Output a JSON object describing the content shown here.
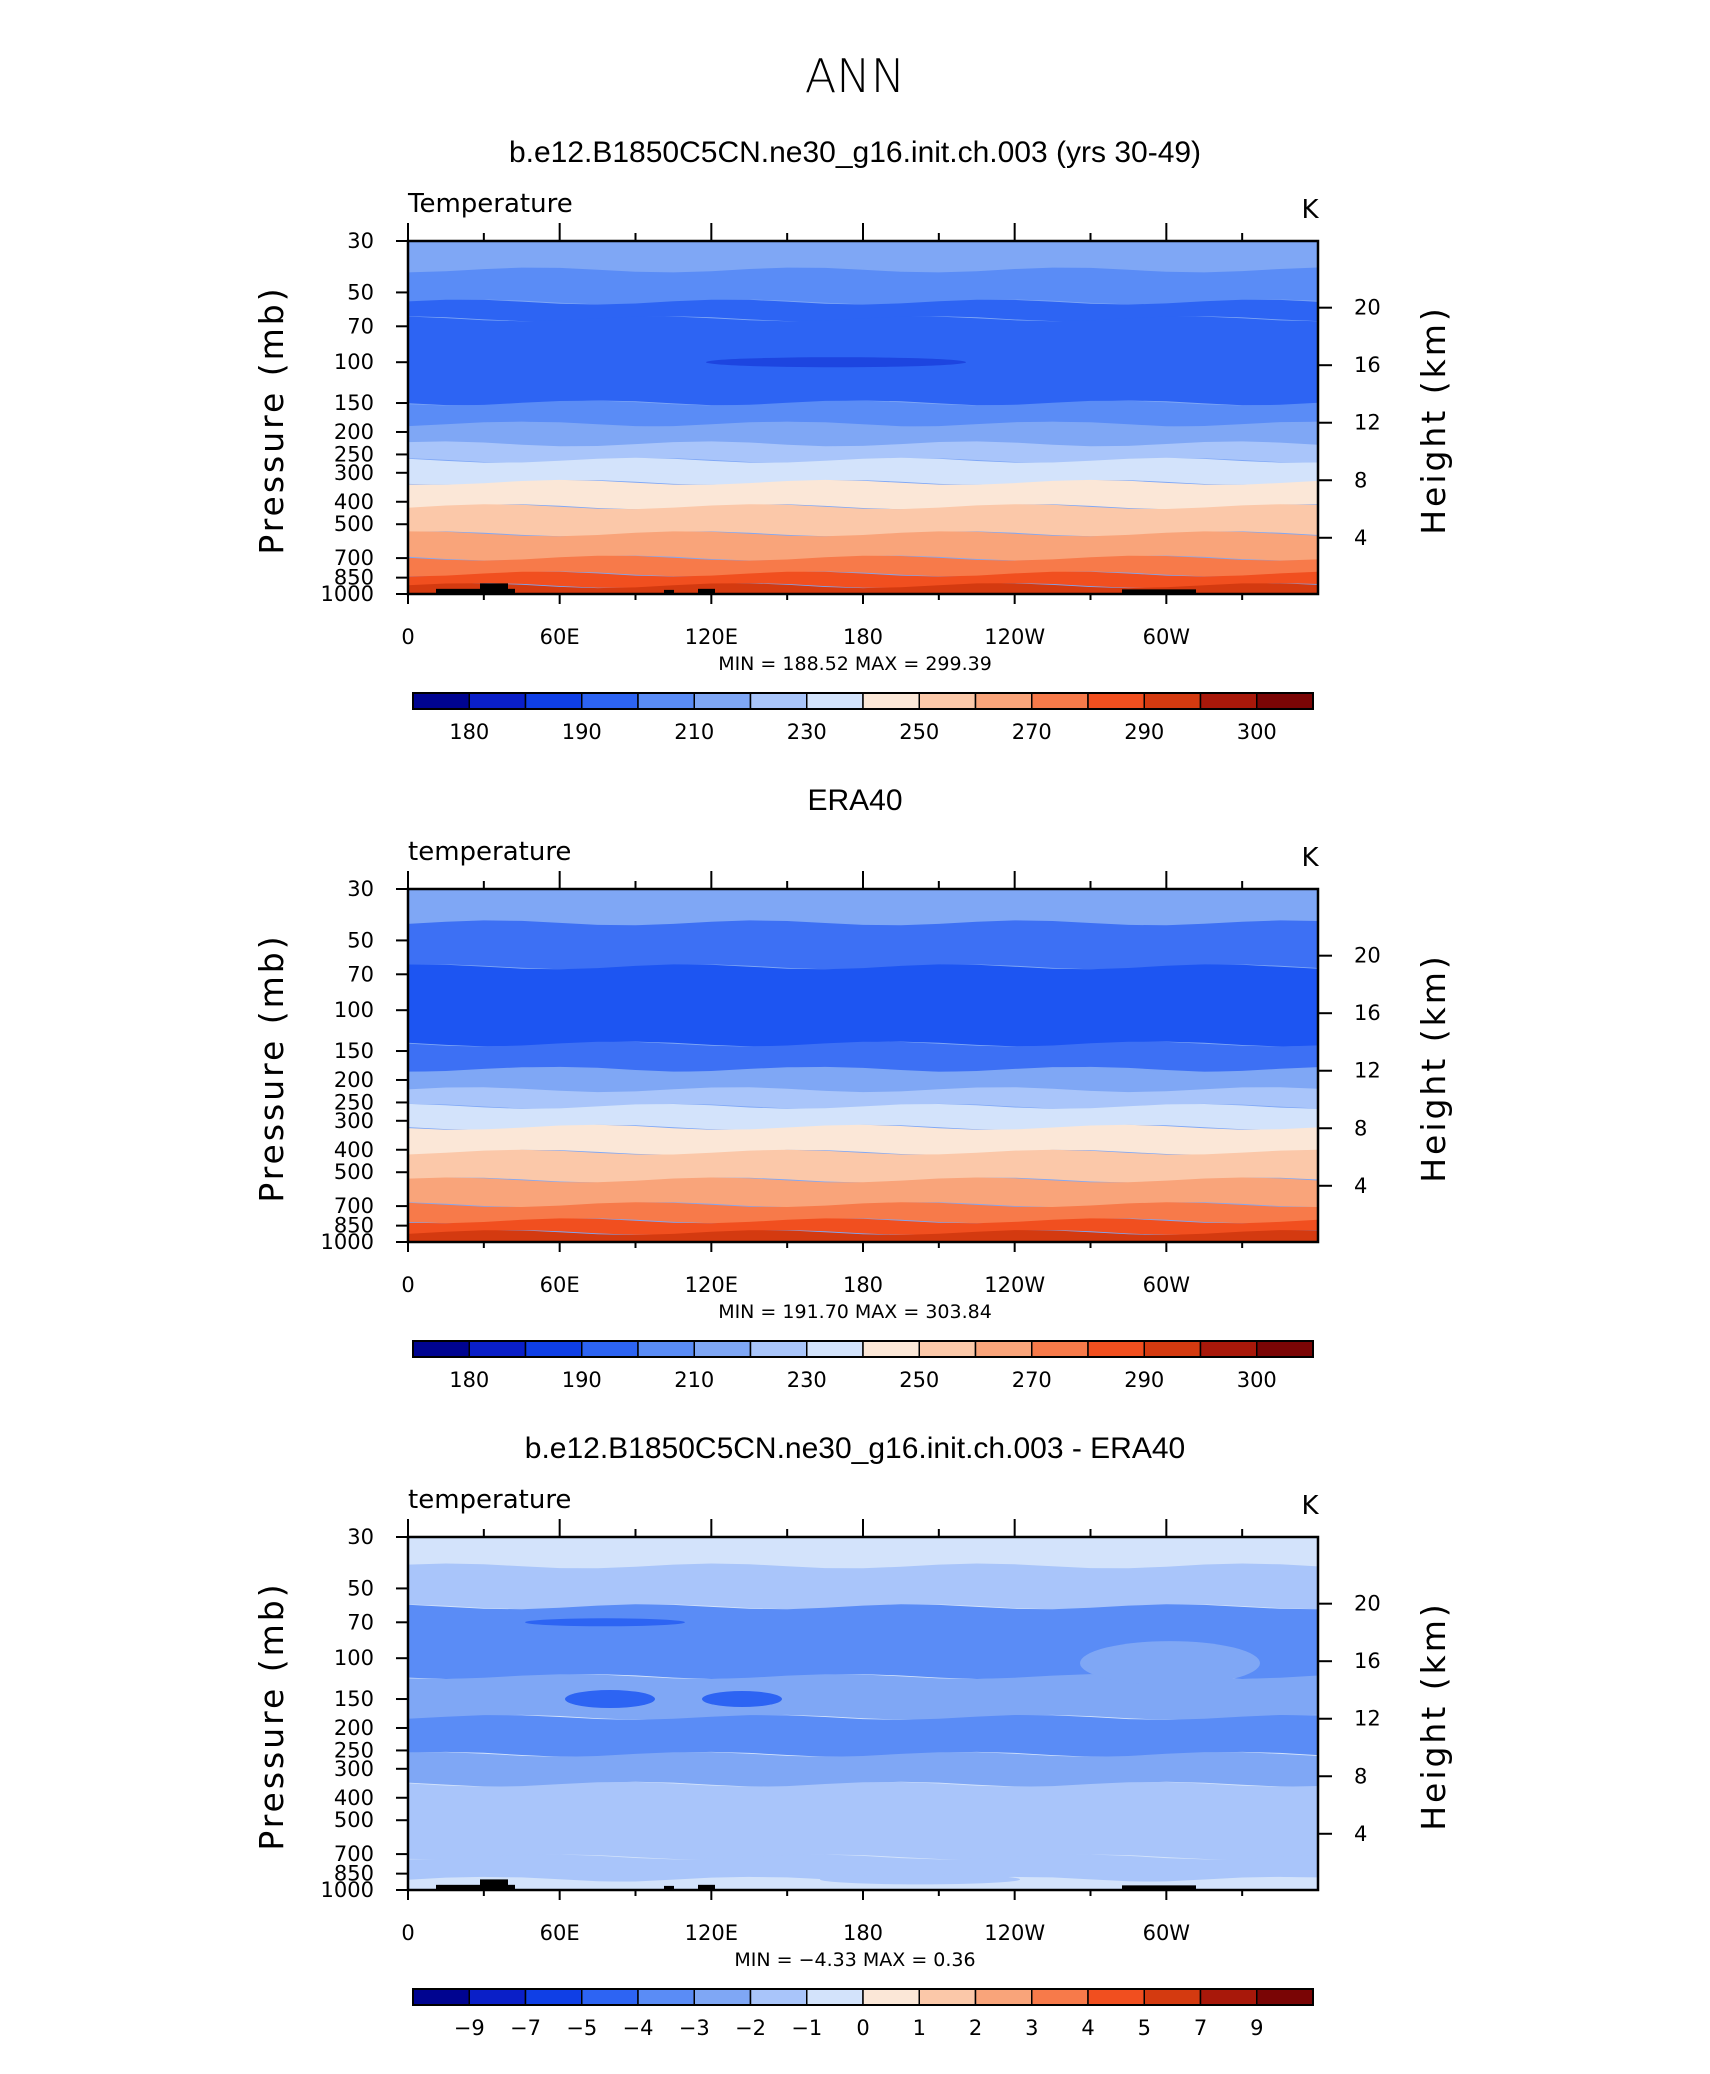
{
  "figure_title": "ANN",
  "chart_data": [
    {
      "type": "heatmap",
      "title": "b.e12.B1850C5CN.ne30_g16.init.ch.003 (yrs 30-49)",
      "variable_label": "Temperature",
      "units": "K",
      "ylabel": "Pressure (mb)",
      "y2label": "Height (km)",
      "x_ticks": [
        "0",
        "60E",
        "120E",
        "180",
        "120W",
        "60W"
      ],
      "y_ticks": [
        "30",
        "50",
        "70",
        "100",
        "150",
        "200",
        "250",
        "300",
        "400",
        "500",
        "700",
        "850",
        "1000"
      ],
      "y2_ticks": [
        "20",
        "16",
        "12",
        "8",
        "4"
      ],
      "min_max_text": "MIN =  188.52   MAX =  299.39",
      "min": 188.52,
      "max": 299.39,
      "colorbar_labels": [
        "180",
        "190",
        "210",
        "230",
        "250",
        "270",
        "290",
        "300"
      ],
      "band_levels_mb": [
        30,
        40,
        55,
        65,
        150,
        185,
        225,
        265,
        330,
        420,
        550,
        700,
        820,
        920,
        1000
      ],
      "band_colors": [
        "#7fa7f5",
        "#5a8cf6",
        "#2d64f3",
        "#2d64f3",
        "#5a8cf6",
        "#7fa7f5",
        "#a9c5fa",
        "#d3e3fb",
        "#fbe7d7",
        "#fbc8a9",
        "#f9a47a",
        "#f77a4a",
        "#f14f1f",
        "#d43a10"
      ],
      "terrain": true
    },
    {
      "type": "heatmap",
      "title": "ERA40",
      "variable_label": "temperature",
      "units": "K",
      "ylabel": "Pressure (mb)",
      "y2label": "Height (km)",
      "x_ticks": [
        "0",
        "60E",
        "120E",
        "180",
        "120W",
        "60W"
      ],
      "y_ticks": [
        "30",
        "50",
        "70",
        "100",
        "150",
        "200",
        "250",
        "300",
        "400",
        "500",
        "700",
        "850",
        "1000"
      ],
      "y2_ticks": [
        "20",
        "16",
        "12",
        "8",
        "4"
      ],
      "min_max_text": "MIN =  191.70   MAX =  303.84",
      "min": 191.7,
      "max": 303.84,
      "colorbar_labels": [
        "180",
        "190",
        "210",
        "230",
        "250",
        "270",
        "290",
        "300"
      ],
      "band_levels_mb": [
        30,
        42,
        65,
        140,
        180,
        220,
        260,
        320,
        410,
        540,
        690,
        810,
        910,
        1000
      ],
      "band_colors": [
        "#7fa7f5",
        "#3d70f4",
        "#1d55f2",
        "#3d70f4",
        "#7fa7f5",
        "#a9c5fa",
        "#d3e3fb",
        "#fbe7d7",
        "#fbc8a9",
        "#f9a47a",
        "#f77a4a",
        "#f14f1f",
        "#d43a10"
      ],
      "terrain": false
    },
    {
      "type": "heatmap",
      "title": "b.e12.B1850C5CN.ne30_g16.init.ch.003 - ERA40",
      "variable_label": "temperature",
      "units": "K",
      "ylabel": "Pressure (mb)",
      "y2label": "Height (km)",
      "x_ticks": [
        "0",
        "60E",
        "120E",
        "180",
        "120W",
        "60W"
      ],
      "y_ticks": [
        "30",
        "50",
        "70",
        "100",
        "150",
        "200",
        "250",
        "300",
        "400",
        "500",
        "700",
        "850",
        "1000"
      ],
      "y2_ticks": [
        "20",
        "16",
        "12",
        "8",
        "4"
      ],
      "min_max_text": "MIN =   −4.33   MAX =     0.36",
      "min": -4.33,
      "max": 0.36,
      "colorbar_labels": [
        "−9",
        "−7",
        "−5",
        "−4",
        "−3",
        "−2",
        "−1",
        "0",
        "1",
        "2",
        "3",
        "4",
        "5",
        "7",
        "9"
      ],
      "band_levels_mb": [
        30,
        40,
        60,
        120,
        180,
        260,
        350,
        720,
        900,
        1000
      ],
      "band_colors": [
        "#d3e3fb",
        "#a9c5fa",
        "#5a8cf6",
        "#7fa7f5",
        "#5a8cf6",
        "#7fa7f5",
        "#a9c5fa",
        "#a9c5fa",
        "#d3e3fb"
      ],
      "terrain": true
    }
  ],
  "colorbar_colors": [
    "#000490",
    "#0a1fc8",
    "#0f3fe6",
    "#2d64f3",
    "#5a8cf6",
    "#7fa7f5",
    "#a9c5fa",
    "#d3e3fb",
    "#fbe7d7",
    "#fbc8a9",
    "#f9a47a",
    "#f77a4a",
    "#f14f1f",
    "#d43a10",
    "#a8180a",
    "#7a0505"
  ]
}
